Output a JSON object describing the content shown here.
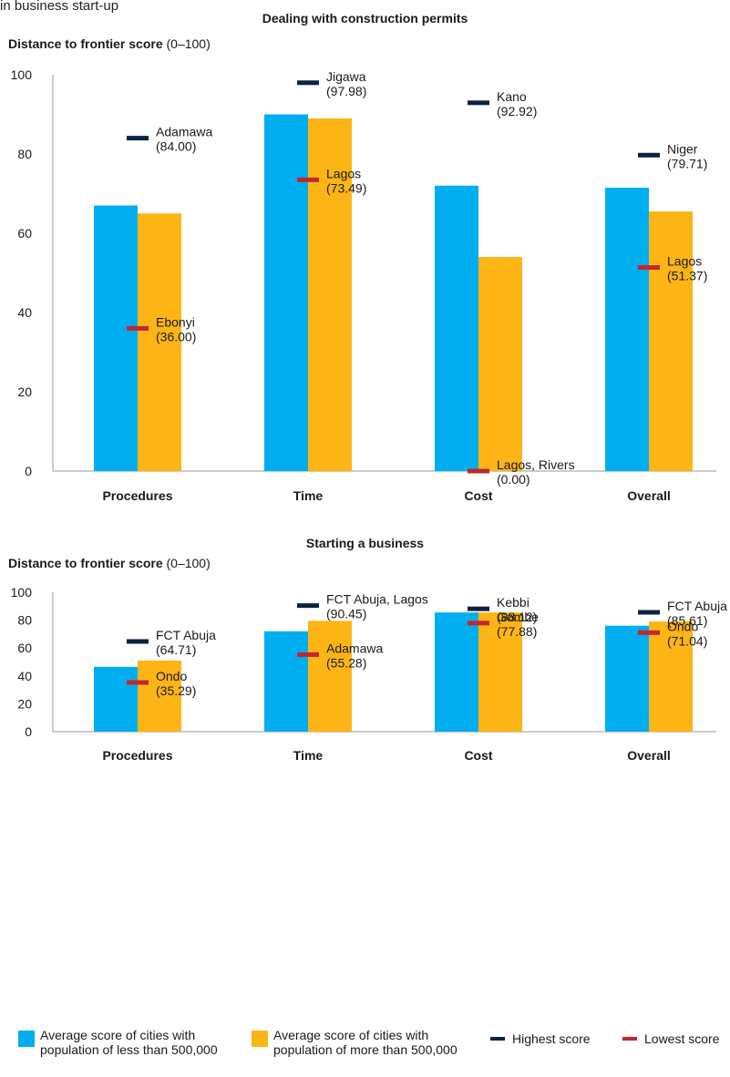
{
  "header_fragment": "in business start-up",
  "legend": {
    "small": "Average score of cities with population of less than 500,000",
    "small_line1": "Average score of cities with",
    "small_line2": "population of less than 500,000",
    "large": "Average score of cities with population of more than 500,000",
    "large_line1": "Average score of cities with",
    "large_line2": "population of more than 500,000",
    "highest": "Highest score",
    "lowest": "Lowest score"
  },
  "colors": {
    "small": "#00aeef",
    "large": "#fdb515",
    "highest": "#0d2240",
    "lowest": "#c1272d",
    "axis": "#999999",
    "text": "#1a1a1a"
  },
  "chart_data": [
    {
      "type": "bar",
      "title": "Dealing with construction permits",
      "ylabel_bold": "Distance to frontier score",
      "ylabel_rest": " (0–100)",
      "ylim": [
        0,
        100
      ],
      "yticks": [
        "0",
        "20",
        "40",
        "60",
        "80",
        "100"
      ],
      "categories": [
        "Procedures",
        "Time",
        "Cost",
        "Overall"
      ],
      "series": [
        {
          "name": "Average score of cities with population of less than 500,000",
          "values": [
            67,
            90,
            72,
            71.5
          ]
        },
        {
          "name": "Average score of cities with population of more than 500,000",
          "values": [
            65,
            89,
            54,
            65.5
          ]
        }
      ],
      "highest": [
        {
          "value": 84.0,
          "name": "Adamawa",
          "label": "(84.00)"
        },
        {
          "value": 97.98,
          "name": "Jigawa",
          "label": "(97.98)"
        },
        {
          "value": 92.92,
          "name": "Kano",
          "label": "(92.92)"
        },
        {
          "value": 79.71,
          "name": "Niger",
          "label": "(79.71)"
        }
      ],
      "lowest": [
        {
          "value": 36.0,
          "name": "Ebonyi",
          "label": "(36.00)"
        },
        {
          "value": 73.49,
          "name": "Lagos",
          "label": "(73.49)"
        },
        {
          "value": 0.0,
          "name": "Lagos, Rivers",
          "label": "(0.00)"
        },
        {
          "value": 51.37,
          "name": "Lagos",
          "label": "(51.37)"
        }
      ]
    },
    {
      "type": "bar",
      "title": "Starting a business",
      "ylabel_bold": "Distance to frontier score",
      "ylabel_rest": " (0–100)",
      "ylim": [
        0,
        100
      ],
      "yticks": [
        "0",
        "20",
        "40",
        "60",
        "80",
        "100"
      ],
      "categories": [
        "Procedures",
        "Time",
        "Cost",
        "Overall"
      ],
      "series": [
        {
          "name": "Average score of cities with population of less than 500,000",
          "values": [
            46.5,
            72,
            85.5,
            76
          ]
        },
        {
          "name": "Average score of cities with population of more than 500,000",
          "values": [
            51,
            79.5,
            85.5,
            79
          ]
        }
      ],
      "highest": [
        {
          "value": 64.71,
          "name": "FCT Abuja",
          "label": "(64.71)"
        },
        {
          "value": 90.45,
          "name": "FCT Abuja, Lagos",
          "label": "(90.45)"
        },
        {
          "value": 88.12,
          "name": "Kebbi",
          "label": "(88.12)"
        },
        {
          "value": 85.61,
          "name": "FCT Abuja",
          "label": "(85.61)"
        }
      ],
      "lowest": [
        {
          "value": 35.29,
          "name": "Ondo",
          "label": "(35.29)"
        },
        {
          "value": 55.28,
          "name": "Adamawa",
          "label": "(55.28)"
        },
        {
          "value": 77.88,
          "name": "Gombe",
          "label": "(77.88)"
        },
        {
          "value": 71.04,
          "name": "Ondo",
          "label": "(71.04)"
        }
      ]
    }
  ]
}
